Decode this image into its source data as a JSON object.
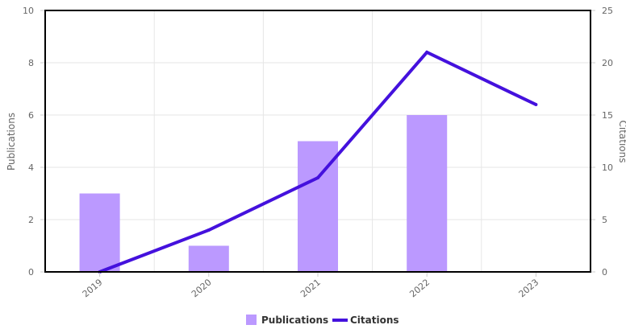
{
  "chart_data": {
    "type": "bar",
    "categories": [
      "2019",
      "2020",
      "2021",
      "2022",
      "2023"
    ],
    "series": [
      {
        "name": "Publications",
        "type": "bar",
        "axis": "left",
        "values": [
          3,
          1,
          5,
          6,
          0
        ],
        "color": "#bb99ff"
      },
      {
        "name": "Citations",
        "type": "line",
        "axis": "right",
        "values": [
          0,
          4,
          9,
          21,
          16
        ],
        "color": "#4411dd"
      }
    ],
    "ylabel": "Publications",
    "y2label": "Citations",
    "ylim": [
      0,
      10
    ],
    "y2lim": [
      0,
      25
    ],
    "yticks": [
      "0",
      "2",
      "4",
      "6",
      "8",
      "10"
    ],
    "y2ticks": [
      "0",
      "5",
      "10",
      "15",
      "20",
      "25"
    ],
    "grid": true,
    "legend_position": "bottom-center"
  }
}
